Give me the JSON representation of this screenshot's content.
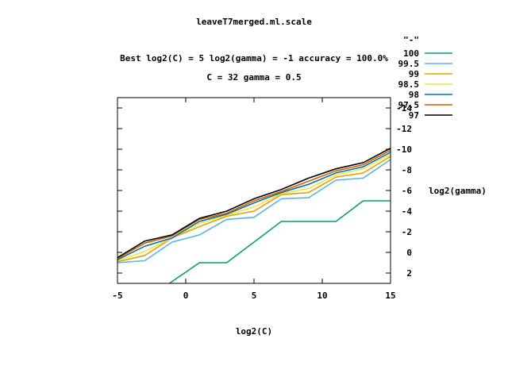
{
  "chart_data": {
    "type": "line",
    "title": "leaveT7merged.ml.scale",
    "subtitle_lines": [
      "Best log2(C) = 5  log2(gamma) = -1  accuracy = 100.0%",
      "C = 32  gamma = 0.5"
    ],
    "xlabel": "log2(C)",
    "ylabel": "log2(gamma)",
    "xlim": [
      -5,
      15
    ],
    "ylim": [
      3,
      -15
    ],
    "x_ticks": [
      "-5",
      "0",
      "5",
      "10",
      "15"
    ],
    "y_ticks": [
      "-14",
      "-12",
      "-10",
      "-8",
      "-6",
      "-4",
      "-2",
      "0",
      "2"
    ],
    "legend_title": "\"-\"",
    "legend_position": "top-right",
    "grid": false,
    "series": [
      {
        "name": "100",
        "color": "#009e73",
        "points": [
          [
            -1.2,
            3
          ],
          [
            1,
            1
          ],
          [
            3,
            1
          ],
          [
            7,
            -3
          ],
          [
            11,
            -3
          ],
          [
            13,
            -5
          ],
          [
            15,
            -5
          ]
        ]
      },
      {
        "name": "99.5",
        "color": "#56b4e9",
        "points": [
          [
            -5,
            1
          ],
          [
            -3,
            0.8
          ],
          [
            -1,
            -1
          ],
          [
            1,
            -1.7
          ],
          [
            3,
            -3.2
          ],
          [
            5,
            -3.4
          ],
          [
            7,
            -5.2
          ],
          [
            9,
            -5.3
          ],
          [
            11,
            -7
          ],
          [
            13,
            -7.2
          ],
          [
            15,
            -9
          ]
        ]
      },
      {
        "name": "99",
        "color": "#e69f00",
        "points": [
          [
            -5,
            0.9
          ],
          [
            -3,
            0.3
          ],
          [
            -1,
            -1.4
          ],
          [
            1,
            -2.5
          ],
          [
            3,
            -3.5
          ],
          [
            5,
            -4
          ],
          [
            7,
            -5.6
          ],
          [
            9,
            -5.8
          ],
          [
            11,
            -7.3
          ],
          [
            13,
            -7.7
          ],
          [
            15,
            -9.3
          ]
        ]
      },
      {
        "name": "98.5",
        "color": "#f0e442",
        "points": [
          [
            -5,
            0.8
          ],
          [
            -3,
            -0.1
          ],
          [
            -1,
            -1.4
          ],
          [
            1,
            -2.8
          ],
          [
            3,
            -3.6
          ],
          [
            5,
            -4.4
          ],
          [
            7,
            -5.7
          ],
          [
            9,
            -6.2
          ],
          [
            11,
            -7.5
          ],
          [
            13,
            -8.1
          ],
          [
            15,
            -9.5
          ]
        ]
      },
      {
        "name": "98",
        "color": "#0072b2",
        "points": [
          [
            -5,
            0.7
          ],
          [
            -3,
            -0.6
          ],
          [
            -1,
            -1.4
          ],
          [
            1,
            -3
          ],
          [
            3,
            -3.7
          ],
          [
            5,
            -4.8
          ],
          [
            7,
            -5.8
          ],
          [
            9,
            -6.6
          ],
          [
            11,
            -7.7
          ],
          [
            13,
            -8.3
          ],
          [
            15,
            -9.7
          ]
        ]
      },
      {
        "name": "97.5",
        "color": "#d55e00",
        "points": [
          [
            -5,
            0.6
          ],
          [
            -3,
            -0.9
          ],
          [
            -1,
            -1.6
          ],
          [
            1,
            -3.2
          ],
          [
            3,
            -3.8
          ],
          [
            5,
            -5
          ],
          [
            7,
            -5.9
          ],
          [
            9,
            -6.9
          ],
          [
            11,
            -7.9
          ],
          [
            13,
            -8.5
          ],
          [
            15,
            -9.9
          ]
        ]
      },
      {
        "name": "97",
        "color": "#000000",
        "points": [
          [
            -5,
            0.5
          ],
          [
            -3,
            -1.1
          ],
          [
            -1,
            -1.7
          ],
          [
            1,
            -3.3
          ],
          [
            3,
            -4
          ],
          [
            5,
            -5.2
          ],
          [
            7,
            -6.1
          ],
          [
            9,
            -7.2
          ],
          [
            11,
            -8.1
          ],
          [
            13,
            -8.7
          ],
          [
            15,
            -10.1
          ]
        ]
      }
    ]
  }
}
